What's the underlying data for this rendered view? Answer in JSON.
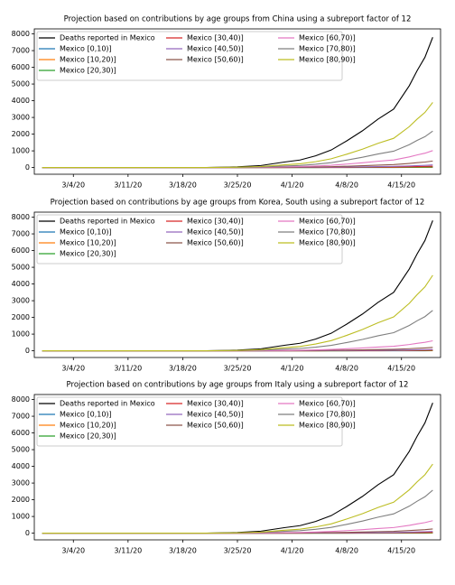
{
  "chart_data": [
    {
      "type": "line",
      "title": "Projection based on contributions by age groups from China using a subreport factor of 12",
      "x": [
        "2/29/20",
        "3/7/20",
        "3/14/20",
        "3/21/20",
        "3/25/20",
        "3/28/20",
        "3/31/20",
        "4/2/20",
        "4/4/20",
        "4/6/20",
        "4/8/20",
        "4/10/20",
        "4/12/20",
        "4/14/20",
        "4/16/20",
        "4/17/20",
        "4/18/20",
        "4/19/20"
      ],
      "xlim": [
        "2/28/20",
        "4/20/20"
      ],
      "xticks": [
        "3/4/20",
        "3/11/20",
        "3/18/20",
        "3/25/20",
        "4/1/20",
        "4/8/20",
        "4/15/20"
      ],
      "ylim": [
        -400,
        8300
      ],
      "yticks": [
        0,
        1000,
        2000,
        3000,
        4000,
        5000,
        6000,
        7000,
        8000
      ],
      "legend": "upper left",
      "series": [
        {
          "name": "Deaths reported in Mexico",
          "color": "#000000",
          "values": [
            0,
            0,
            0,
            0,
            40,
            120,
            330,
            450,
            700,
            1050,
            1600,
            2200,
            2900,
            3500,
            4900,
            5800,
            6600,
            7800
          ]
        },
        {
          "name": "Mexico [0,10)]",
          "color": "#1f77b4",
          "values": [
            0,
            0,
            0,
            0,
            0,
            0,
            0,
            0,
            1,
            1,
            2,
            2,
            3,
            4,
            5,
            6,
            7,
            8
          ]
        },
        {
          "name": "Mexico [10,20)]",
          "color": "#ff7f0e",
          "values": [
            0,
            0,
            0,
            0,
            0,
            0,
            1,
            1,
            2,
            3,
            4,
            6,
            7,
            9,
            12,
            15,
            17,
            20
          ]
        },
        {
          "name": "Mexico [20,30)]",
          "color": "#2ca02c",
          "values": [
            0,
            0,
            0,
            0,
            0,
            1,
            2,
            2,
            4,
            5,
            8,
            11,
            15,
            18,
            25,
            29,
            33,
            39
          ]
        },
        {
          "name": "Mexico [30,40)]",
          "color": "#d62728",
          "values": [
            0,
            0,
            0,
            0,
            0,
            1,
            3,
            5,
            7,
            11,
            16,
            22,
            29,
            35,
            49,
            58,
            66,
            78
          ]
        },
        {
          "name": "Mexico [40,50)]",
          "color": "#9467bd",
          "values": [
            0,
            0,
            0,
            0,
            1,
            2,
            7,
            9,
            14,
            21,
            32,
            44,
            58,
            70,
            98,
            116,
            132,
            156
          ]
        },
        {
          "name": "Mexico [50,60)]",
          "color": "#8c564b",
          "values": [
            0,
            0,
            0,
            0,
            2,
            6,
            17,
            23,
            35,
            53,
            80,
            110,
            145,
            175,
            245,
            290,
            330,
            390
          ]
        },
        {
          "name": "Mexico [60,70)]",
          "color": "#e377c2",
          "values": [
            0,
            0,
            0,
            0,
            5,
            16,
            43,
            59,
            91,
            137,
            208,
            286,
            377,
            455,
            637,
            754,
            858,
            1014
          ]
        },
        {
          "name": "Mexico [70,80)]",
          "color": "#7f7f7f",
          "values": [
            0,
            0,
            0,
            0,
            11,
            34,
            92,
            126,
            196,
            294,
            448,
            616,
            812,
            980,
            1372,
            1624,
            1848,
            2184
          ]
        },
        {
          "name": "Mexico [80,90)]",
          "color": "#bcbd22",
          "values": [
            0,
            0,
            0,
            0,
            20,
            60,
            165,
            225,
            350,
            525,
            800,
            1100,
            1450,
            1750,
            2450,
            2900,
            3300,
            3900
          ]
        }
      ]
    },
    {
      "type": "line",
      "title": "Projection based on contributions by age groups from Korea, South using a subreport factor of 12",
      "x": [
        "2/29/20",
        "3/7/20",
        "3/14/20",
        "3/21/20",
        "3/25/20",
        "3/28/20",
        "3/31/20",
        "4/2/20",
        "4/4/20",
        "4/6/20",
        "4/8/20",
        "4/10/20",
        "4/12/20",
        "4/14/20",
        "4/16/20",
        "4/17/20",
        "4/18/20",
        "4/19/20"
      ],
      "xlim": [
        "2/28/20",
        "4/20/20"
      ],
      "xticks": [
        "3/4/20",
        "3/11/20",
        "3/18/20",
        "3/25/20",
        "4/1/20",
        "4/8/20",
        "4/15/20"
      ],
      "ylim": [
        -400,
        8300
      ],
      "yticks": [
        0,
        1000,
        2000,
        3000,
        4000,
        5000,
        6000,
        7000,
        8000
      ],
      "legend": "upper left",
      "series": [
        {
          "name": "Deaths reported in Mexico",
          "color": "#000000",
          "values": [
            0,
            0,
            0,
            0,
            40,
            120,
            330,
            450,
            700,
            1050,
            1600,
            2200,
            2900,
            3500,
            4900,
            5800,
            6600,
            7800
          ]
        },
        {
          "name": "Mexico [0,10)]",
          "color": "#1f77b4",
          "values": [
            0,
            0,
            0,
            0,
            0,
            0,
            0,
            0,
            0,
            1,
            1,
            1,
            2,
            2,
            3,
            3,
            4,
            5
          ]
        },
        {
          "name": "Mexico [10,20)]",
          "color": "#ff7f0e",
          "values": [
            0,
            0,
            0,
            0,
            0,
            0,
            0,
            1,
            1,
            1,
            2,
            3,
            4,
            5,
            6,
            8,
            9,
            10
          ]
        },
        {
          "name": "Mexico [20,30)]",
          "color": "#2ca02c",
          "values": [
            0,
            0,
            0,
            0,
            0,
            0,
            1,
            1,
            2,
            3,
            4,
            6,
            7,
            9,
            12,
            15,
            17,
            20
          ]
        },
        {
          "name": "Mexico [30,40)]",
          "color": "#d62728",
          "values": [
            0,
            0,
            0,
            0,
            0,
            1,
            2,
            2,
            4,
            5,
            8,
            11,
            15,
            18,
            25,
            29,
            33,
            39
          ]
        },
        {
          "name": "Mexico [40,50)]",
          "color": "#9467bd",
          "values": [
            0,
            0,
            0,
            0,
            0,
            1,
            3,
            5,
            7,
            11,
            16,
            22,
            29,
            35,
            49,
            58,
            66,
            78
          ]
        },
        {
          "name": "Mexico [50,60)]",
          "color": "#8c564b",
          "values": [
            0,
            0,
            0,
            0,
            1,
            3,
            9,
            12,
            18,
            27,
            42,
            57,
            75,
            91,
            127,
            151,
            172,
            203
          ]
        },
        {
          "name": "Mexico [60,70)]",
          "color": "#e377c2",
          "values": [
            0,
            0,
            0,
            0,
            3,
            9,
            25,
            35,
            54,
            81,
            123,
            169,
            223,
            270,
            377,
            447,
            508,
            601
          ]
        },
        {
          "name": "Mexico [70,80)]",
          "color": "#7f7f7f",
          "values": [
            0,
            0,
            0,
            0,
            12,
            37,
            102,
            140,
            217,
            326,
            496,
            682,
            899,
            1085,
            1519,
            1798,
            2046,
            2418
          ]
        },
        {
          "name": "Mexico [80,90)]",
          "color": "#bcbd22",
          "values": [
            0,
            0,
            0,
            0,
            23,
            70,
            191,
            261,
            406,
            609,
            928,
            1276,
            1682,
            2030,
            2842,
            3364,
            3828,
            4524
          ]
        }
      ]
    },
    {
      "type": "line",
      "title": "Projection based on contributions by age groups from Italy using a subreport factor of 12",
      "x": [
        "2/29/20",
        "3/7/20",
        "3/14/20",
        "3/21/20",
        "3/25/20",
        "3/28/20",
        "3/31/20",
        "4/2/20",
        "4/4/20",
        "4/6/20",
        "4/8/20",
        "4/10/20",
        "4/12/20",
        "4/14/20",
        "4/16/20",
        "4/17/20",
        "4/18/20",
        "4/19/20"
      ],
      "xlim": [
        "2/28/20",
        "4/20/20"
      ],
      "xticks": [
        "3/4/20",
        "3/11/20",
        "3/18/20",
        "3/25/20",
        "4/1/20",
        "4/8/20",
        "4/15/20"
      ],
      "ylim": [
        -400,
        8300
      ],
      "yticks": [
        0,
        1000,
        2000,
        3000,
        4000,
        5000,
        6000,
        7000,
        8000
      ],
      "legend": "upper left",
      "series": [
        {
          "name": "Deaths reported in Mexico",
          "color": "#000000",
          "values": [
            0,
            0,
            0,
            0,
            40,
            120,
            330,
            450,
            700,
            1050,
            1600,
            2200,
            2900,
            3500,
            4900,
            5800,
            6600,
            7800
          ]
        },
        {
          "name": "Mexico [0,10)]",
          "color": "#1f77b4",
          "values": [
            0,
            0,
            0,
            0,
            0,
            0,
            0,
            0,
            0,
            1,
            1,
            1,
            2,
            2,
            3,
            3,
            4,
            5
          ]
        },
        {
          "name": "Mexico [10,20)]",
          "color": "#ff7f0e",
          "values": [
            0,
            0,
            0,
            0,
            0,
            0,
            0,
            1,
            1,
            1,
            2,
            3,
            4,
            5,
            6,
            8,
            9,
            10
          ]
        },
        {
          "name": "Mexico [20,30)]",
          "color": "#2ca02c",
          "values": [
            0,
            0,
            0,
            0,
            0,
            0,
            1,
            1,
            2,
            3,
            4,
            6,
            8,
            9,
            13,
            15,
            17,
            20
          ]
        },
        {
          "name": "Mexico [30,40)]",
          "color": "#d62728",
          "values": [
            0,
            0,
            0,
            0,
            0,
            1,
            2,
            3,
            5,
            7,
            10,
            14,
            19,
            23,
            32,
            38,
            43,
            51
          ]
        },
        {
          "name": "Mexico [40,50)]",
          "color": "#9467bd",
          "values": [
            0,
            0,
            0,
            0,
            1,
            2,
            4,
            6,
            9,
            14,
            21,
            29,
            38,
            46,
            64,
            75,
            86,
            101
          ]
        },
        {
          "name": "Mexico [50,60)]",
          "color": "#8c564b",
          "values": [
            0,
            0,
            0,
            0,
            1,
            4,
            11,
            14,
            22,
            34,
            51,
            70,
            93,
            112,
            157,
            186,
            211,
            250
          ]
        },
        {
          "name": "Mexico [60,70)]",
          "color": "#e377c2",
          "values": [
            0,
            0,
            0,
            0,
            4,
            12,
            32,
            43,
            67,
            101,
            154,
            211,
            278,
            336,
            470,
            557,
            634,
            749
          ]
        },
        {
          "name": "Mexico [70,80)]",
          "color": "#7f7f7f",
          "values": [
            0,
            0,
            0,
            0,
            13,
            40,
            109,
            149,
            231,
            347,
            528,
            726,
            957,
            1155,
            1617,
            1914,
            2178,
            2574
          ]
        },
        {
          "name": "Mexico [80,90)]",
          "color": "#bcbd22",
          "values": [
            0,
            0,
            0,
            0,
            21,
            64,
            175,
            239,
            371,
            557,
            848,
            1166,
            1537,
            1855,
            2597,
            3074,
            3498,
            4134
          ]
        }
      ]
    }
  ]
}
